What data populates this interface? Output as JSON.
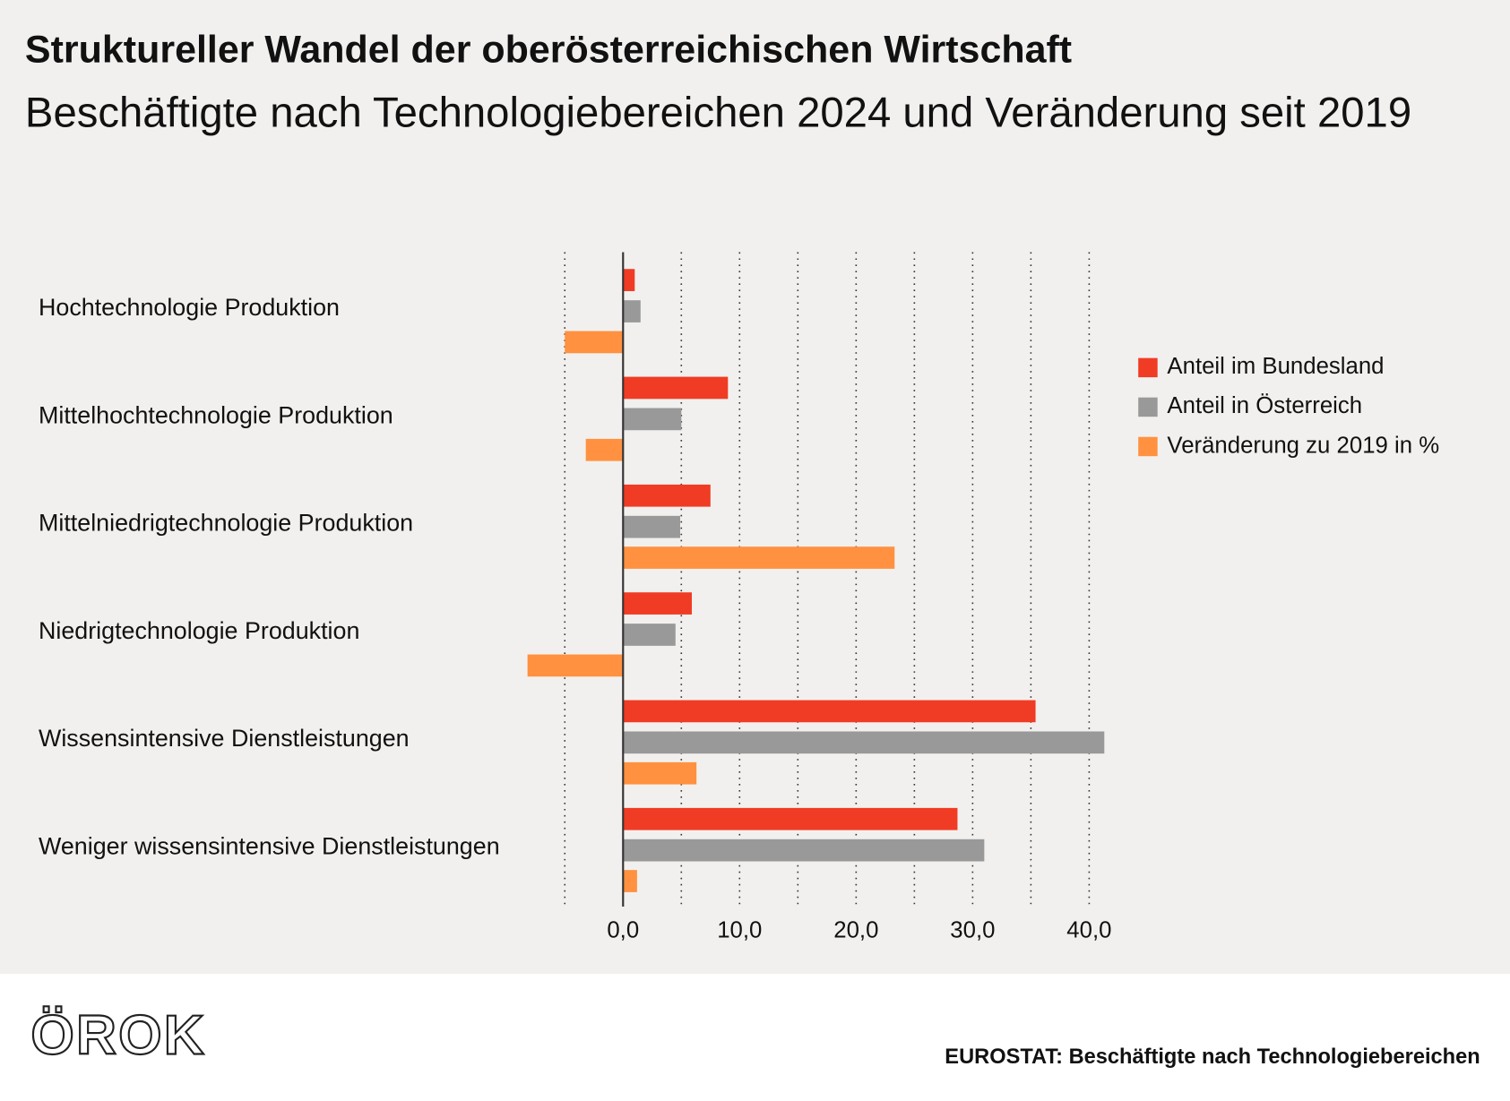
{
  "chart_data": {
    "type": "bar",
    "orientation": "horizontal",
    "title": "Struktureller Wandel der oberösterreichischen Wirtschaft",
    "subtitle": "Beschäftigte nach Technologiebereichen 2024 und Veränderung seit 2019",
    "categories": [
      "Hochtechnologie Produktion",
      "Mittelhochtechnologie Produktion",
      "Mittelniedrigtechnologie Produktion",
      "Niedrigtechnologie Produktion",
      "Wissensintensive Dienstleistungen",
      "Weniger wissensintensive Dienstleistungen"
    ],
    "series": [
      {
        "name": "Anteil im Bundesland",
        "color": "#f03c24",
        "values": [
          1.0,
          9.0,
          7.5,
          5.9,
          35.4,
          28.7
        ]
      },
      {
        "name": "Anteil in Österreich",
        "color": "#999999",
        "values": [
          1.5,
          5.0,
          4.9,
          4.5,
          41.3,
          31.0
        ]
      },
      {
        "name": "Veränderung zu 2019 in %",
        "color": "#ff9140",
        "values": [
          -5.0,
          -3.2,
          23.3,
          -8.2,
          6.3,
          1.2
        ]
      }
    ],
    "xlim": [
      -10,
      45
    ],
    "xticks": [
      {
        "value": 0,
        "label": "0,0"
      },
      {
        "value": 10,
        "label": "10,0"
      },
      {
        "value": 20,
        "label": "20,0"
      },
      {
        "value": 30,
        "label": "30,0"
      },
      {
        "value": 40,
        "label": "40,0"
      }
    ],
    "xminorticks": [
      -5,
      5,
      15,
      25,
      35
    ],
    "grid": true,
    "legend": "right",
    "logo": "ÖROK",
    "source": "EUROSTAT: Beschäftigte nach Technologiebereichen"
  }
}
